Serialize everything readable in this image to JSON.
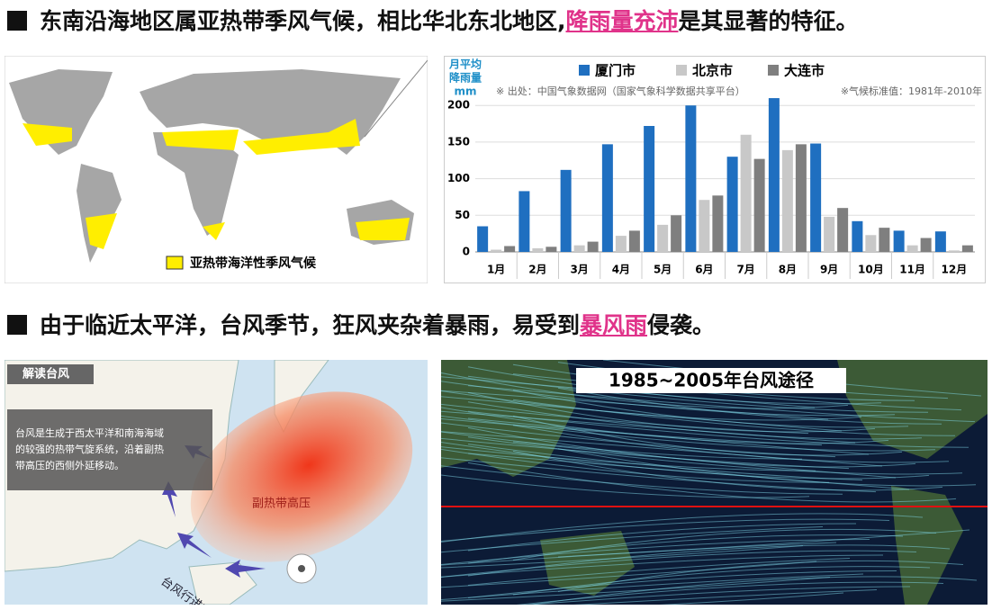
{
  "heading1": {
    "prefix": "东南沿海地区属亚热带季风气候，相比华北东北地区,",
    "highlight": "降雨量充沛",
    "suffix": "是其显著的特征。"
  },
  "map_legend": "亚热带海洋性季风气候",
  "chart_data": {
    "type": "bar",
    "y_label": [
      "月平均",
      "降雨量",
      "mm"
    ],
    "source": "※ 出处：中国气象数据网（国家气象科学数据共享平台）",
    "note": "※气候标准值：1981年-2010年",
    "categories": [
      "1月",
      "2月",
      "3月",
      "4月",
      "5月",
      "6月",
      "7月",
      "8月",
      "9月",
      "10月",
      "11月",
      "12月"
    ],
    "series": [
      {
        "name": "厦门市",
        "color": "#1f6fc0",
        "values": [
          35,
          83,
          112,
          147,
          172,
          200,
          130,
          210,
          148,
          42,
          29,
          28
        ]
      },
      {
        "name": "北京市",
        "color": "#c8c8c8",
        "values": [
          3,
          5,
          9,
          22,
          37,
          71,
          160,
          139,
          48,
          23,
          9,
          2
        ]
      },
      {
        "name": "大连市",
        "color": "#7f7f7f",
        "values": [
          8,
          7,
          14,
          29,
          50,
          77,
          127,
          147,
          60,
          33,
          19,
          9
        ]
      }
    ],
    "ylim": [
      0,
      215
    ],
    "yticks": [
      0,
      50,
      100,
      150,
      200
    ],
    "grid": true
  },
  "heading2": {
    "prefix": "由于临近太平洋，台风季节，狂风夹杂着暴雨，易受到",
    "highlight": "暴风雨",
    "suffix": "侵袭。"
  },
  "typhoon_map": {
    "tag": "解读台风",
    "description": [
      "台风是生成于西太平洋和南海海域",
      "的较强的热带气旋系统，沿着副热",
      "带高压的西侧外延移动。"
    ],
    "high_pressure": "副热带高压",
    "path_label": "台风行进方向"
  },
  "track_map": {
    "title": "1985~2005年台风途径"
  }
}
